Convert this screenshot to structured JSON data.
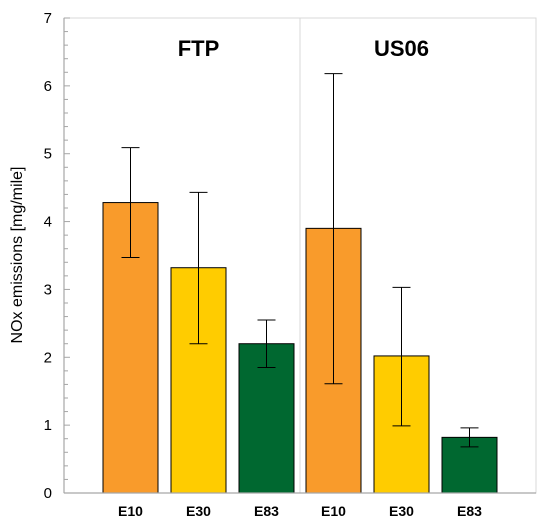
{
  "chart_data": {
    "type": "bar",
    "ylabel": "NOx emissions [mg/mile]",
    "ylim": [
      0,
      7
    ],
    "yticks": [
      "0",
      "1",
      "2",
      "3",
      "4",
      "5",
      "6",
      "7"
    ],
    "groups": [
      {
        "label": "FTP",
        "categories": [
          "E10",
          "E30",
          "E83"
        ],
        "values": [
          4.28,
          3.32,
          2.2
        ],
        "error_low": [
          3.47,
          2.2,
          1.85
        ],
        "error_high": [
          5.09,
          4.43,
          2.55
        ]
      },
      {
        "label": "US06",
        "categories": [
          "E10",
          "E30",
          "E83"
        ],
        "values": [
          3.9,
          2.02,
          0.82
        ],
        "error_low": [
          1.61,
          0.99,
          0.68
        ],
        "error_high": [
          6.18,
          3.03,
          0.96
        ]
      }
    ],
    "bar_colors": [
      "#f99b2b",
      "#ffcc00",
      "#006830"
    ],
    "grid": false,
    "legend": "none"
  }
}
